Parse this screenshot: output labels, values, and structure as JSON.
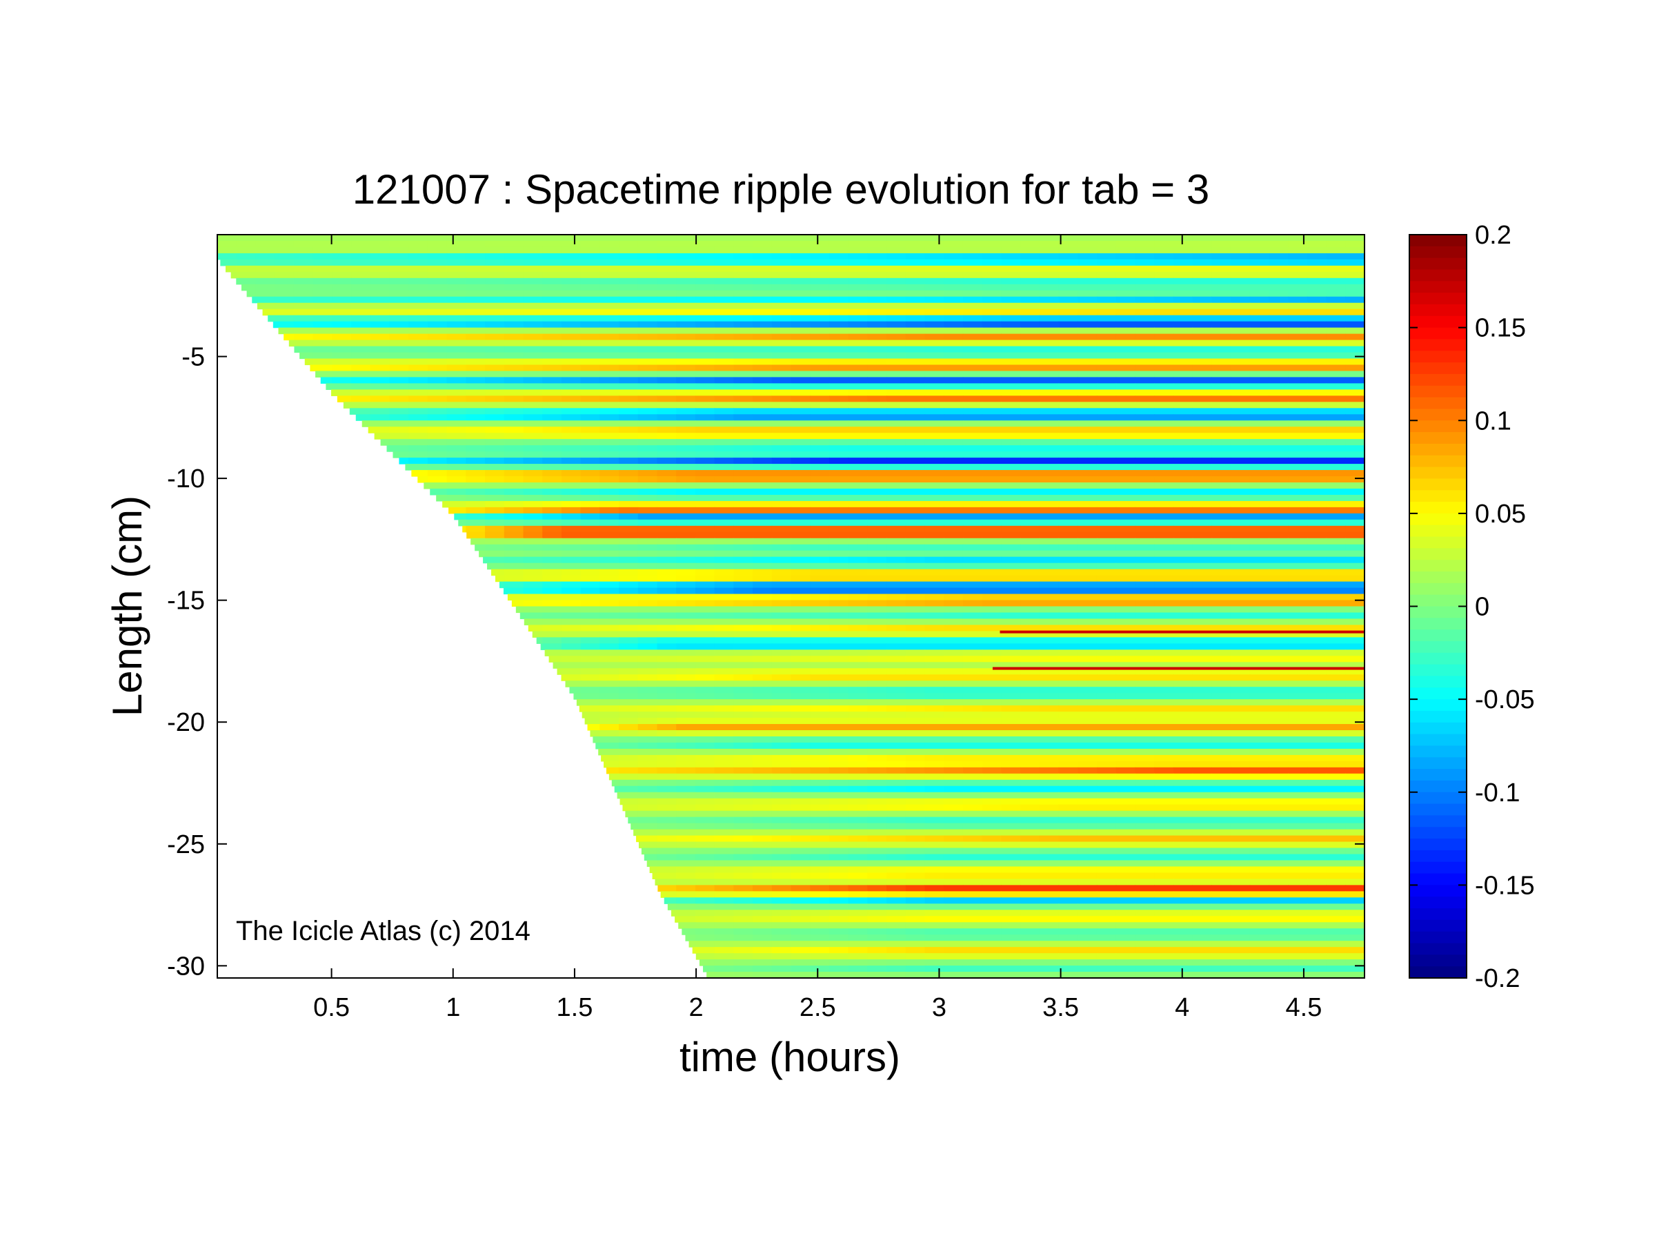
{
  "chart_data": {
    "type": "heatmap",
    "title": "121007 : Spacetime ripple evolution for tab = 3",
    "xlabel": "time (hours)",
    "ylabel": "Length (cm)",
    "xlim": [
      0.03,
      4.75
    ],
    "ylim": [
      -30.5,
      0.0
    ],
    "xticks": [
      0.5,
      1,
      1.5,
      2,
      2.5,
      3,
      3.5,
      4,
      4.5
    ],
    "xtick_labels": [
      "0.5",
      "1",
      "1.5",
      "2",
      "2.5",
      "3",
      "3.5",
      "4",
      "4.5"
    ],
    "yticks": [
      -5,
      -10,
      -15,
      -20,
      -25,
      -30
    ],
    "ytick_labels": [
      "-5",
      "-10",
      "-15",
      "-20",
      "-25",
      "-30"
    ],
    "colorbar": {
      "colormap": "jet",
      "clim": [
        -0.2,
        0.2
      ],
      "ticks": [
        0.2,
        0.15,
        0.1,
        0.05,
        0,
        -0.05,
        -0.1,
        -0.15,
        -0.2
      ],
      "tick_labels": [
        "0.2",
        "0.15",
        "0.1",
        "0.05",
        "0",
        "-0.05",
        "-0.1",
        "-0.15",
        "-0.2"
      ]
    },
    "annotation": "The Icicle Atlas (c) 2014",
    "grid": false,
    "growth_front": [
      {
        "t": 0.03,
        "length": -1.0
      },
      {
        "t": 0.5,
        "length": -6.5
      },
      {
        "t": 1.0,
        "length": -11.5
      },
      {
        "t": 1.5,
        "length": -19.0
      },
      {
        "t": 1.85,
        "length": -27.0
      },
      {
        "t": 2.05,
        "length": -30.5
      }
    ],
    "bands": [
      {
        "length": -0.6,
        "amplitude": 0.02,
        "t_strong": 4.5
      },
      {
        "length": -1.0,
        "amplitude": -0.12,
        "t_strong": 4.6
      },
      {
        "length": -1.5,
        "amplitude": 0.04,
        "t_strong": 4.0
      },
      {
        "length": -2.0,
        "amplitude": -0.06,
        "t_strong": 3.5
      },
      {
        "length": -2.5,
        "amplitude": 0.05,
        "t_strong": 3.0
      },
      {
        "length": -2.6,
        "amplitude": -0.14,
        "t_strong": 4.7
      },
      {
        "length": -3.1,
        "amplitude": 0.06,
        "t_strong": 4.0
      },
      {
        "length": -3.6,
        "amplitude": -0.15,
        "t_strong": 3.5
      },
      {
        "length": -4.2,
        "amplitude": 0.08,
        "t_strong": 3.0
      },
      {
        "length": -4.8,
        "amplitude": -0.06,
        "t_strong": 3.2
      },
      {
        "length": -5.4,
        "amplitude": 0.08,
        "t_strong": 2.5
      },
      {
        "length": -6.0,
        "amplitude": -0.13,
        "t_strong": 2.4
      },
      {
        "length": -6.7,
        "amplitude": 0.09,
        "t_strong": 2.8
      },
      {
        "length": -7.4,
        "amplitude": -0.12,
        "t_strong": 2.2
      },
      {
        "length": -8.1,
        "amplitude": 0.06,
        "t_strong": 2.0
      },
      {
        "length": -8.7,
        "amplitude": -0.06,
        "t_strong": 2.6
      },
      {
        "length": -9.3,
        "amplitude": -0.15,
        "t_strong": 2.6
      },
      {
        "length": -9.9,
        "amplitude": 0.1,
        "t_strong": 2.0
      },
      {
        "length": -10.6,
        "amplitude": -0.07,
        "t_strong": 2.0
      },
      {
        "length": -11.3,
        "amplitude": 0.12,
        "t_strong": 1.7
      },
      {
        "length": -11.6,
        "amplitude": -0.14,
        "t_strong": 1.8
      },
      {
        "length": -12.2,
        "amplitude": 0.13,
        "t_strong": 1.4
      },
      {
        "length": -12.8,
        "amplitude": -0.04,
        "t_strong": 2.5
      },
      {
        "length": -13.4,
        "amplitude": -0.08,
        "t_strong": 3.0
      },
      {
        "length": -14.0,
        "amplitude": 0.07,
        "t_strong": 2.5
      },
      {
        "length": -14.5,
        "amplitude": -0.15,
        "t_strong": 2.3
      },
      {
        "length": -15.0,
        "amplitude": 0.09,
        "t_strong": 3.2
      },
      {
        "length": -15.6,
        "amplitude": -0.05,
        "t_strong": 3.5
      },
      {
        "length": -16.2,
        "amplitude": 0.05,
        "t_strong": 3.0
      },
      {
        "length": -16.8,
        "amplitude": -0.09,
        "t_strong": 1.9
      },
      {
        "length": -17.3,
        "amplitude": 0.04,
        "t_strong": 3.5
      },
      {
        "length": -18.1,
        "amplitude": 0.05,
        "t_strong": 2.5
      },
      {
        "length": -18.8,
        "amplitude": -0.06,
        "t_strong": 3.0
      },
      {
        "length": -19.5,
        "amplitude": 0.05,
        "t_strong": 3.5
      },
      {
        "length": -20.2,
        "amplitude": 0.07,
        "t_strong": 1.8
      },
      {
        "length": -20.9,
        "amplitude": -0.06,
        "t_strong": 2.5
      },
      {
        "length": -21.5,
        "amplitude": 0.04,
        "t_strong": 3.0
      },
      {
        "length": -22.0,
        "amplitude": 0.1,
        "t_strong": 4.0
      },
      {
        "length": -22.7,
        "amplitude": -0.07,
        "t_strong": 3.0
      },
      {
        "length": -23.4,
        "amplitude": 0.05,
        "t_strong": 3.5
      },
      {
        "length": -24.1,
        "amplitude": -0.05,
        "t_strong": 3.0
      },
      {
        "length": -24.8,
        "amplitude": 0.06,
        "t_strong": 3.5
      },
      {
        "length": -25.5,
        "amplitude": -0.05,
        "t_strong": 3.0
      },
      {
        "length": -26.2,
        "amplitude": 0.05,
        "t_strong": 3.0
      },
      {
        "length": -26.9,
        "amplitude": 0.13,
        "t_strong": 3.0
      },
      {
        "length": -27.3,
        "amplitude": -0.09,
        "t_strong": 3.0
      },
      {
        "length": -28.0,
        "amplitude": 0.04,
        "t_strong": 3.0
      },
      {
        "length": -28.7,
        "amplitude": -0.04,
        "t_strong": 3.0
      },
      {
        "length": -29.4,
        "amplitude": 0.05,
        "t_strong": 3.0
      },
      {
        "length": -30.1,
        "amplitude": -0.04,
        "t_strong": 3.0
      }
    ],
    "spikes": [
      {
        "length": -16.3,
        "t_start": 3.25,
        "t_end": 4.75,
        "value": 0.2
      },
      {
        "length": -17.8,
        "t_start": 3.22,
        "t_end": 4.75,
        "value": 0.2
      }
    ]
  }
}
